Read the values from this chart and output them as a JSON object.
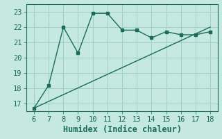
{
  "title": "",
  "xlabel": "Humidex (Indice chaleur)",
  "ylabel": "",
  "bg_color": "#c5e8e0",
  "grid_color": "#9fcfc5",
  "line_color": "#1a6b5a",
  "marker_color": "#1a6b5a",
  "curve_x": [
    6,
    7,
    8,
    9,
    10,
    11,
    12,
    13,
    14,
    15,
    16,
    17,
    18
  ],
  "curve_y": [
    16.7,
    18.2,
    22.0,
    20.3,
    22.9,
    22.9,
    21.8,
    21.8,
    21.3,
    21.7,
    21.5,
    21.5,
    21.7
  ],
  "line_x": [
    6,
    18
  ],
  "line_y": [
    16.7,
    22.0
  ],
  "xlim": [
    5.5,
    18.5
  ],
  "ylim": [
    16.5,
    23.5
  ],
  "xticks": [
    6,
    7,
    8,
    9,
    10,
    11,
    12,
    13,
    14,
    15,
    16,
    17,
    18
  ],
  "yticks": [
    17,
    18,
    19,
    20,
    21,
    22,
    23
  ],
  "font_size": 7.5,
  "xlabel_fontsize": 8.5
}
